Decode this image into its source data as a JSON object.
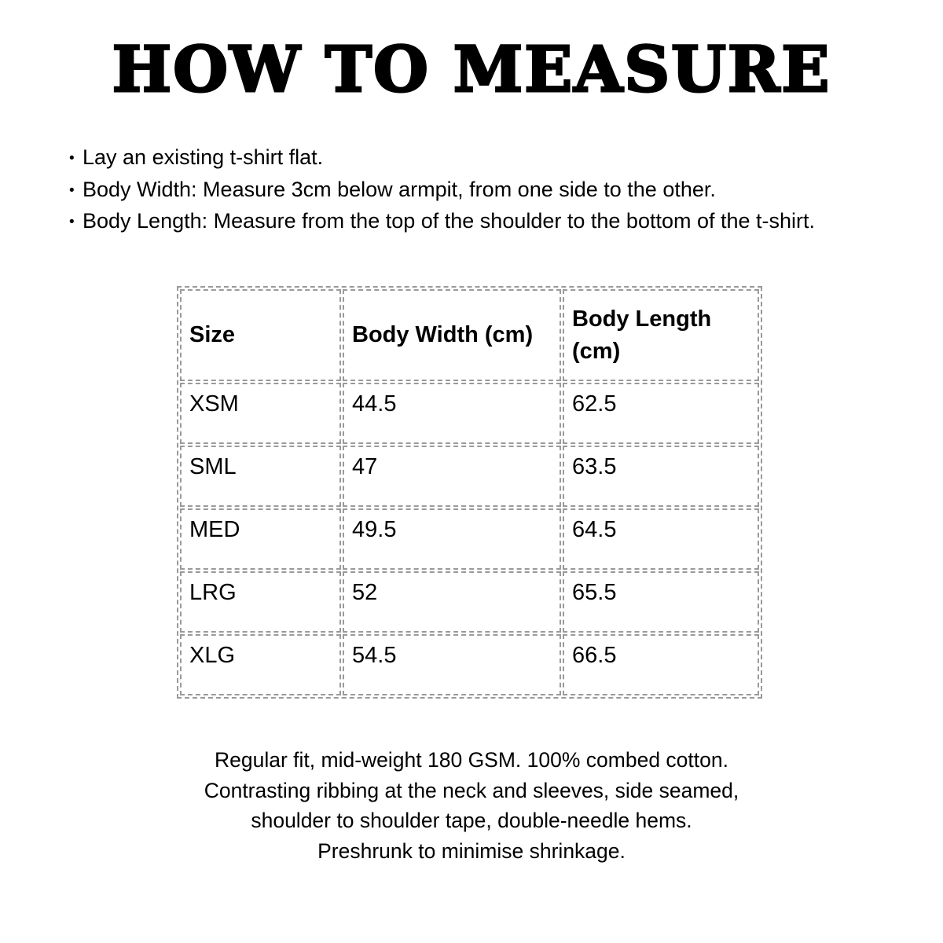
{
  "page": {
    "title": "HOW TO MEASURE",
    "bullet_char": "•"
  },
  "instructions": {
    "items": [
      "Lay an existing t-shirt flat.",
      "Body Width: Measure 3cm below armpit, from one side to the other.",
      "Body Length: Measure from the top of the shoulder to the bottom of the t-shirt."
    ]
  },
  "size_table": {
    "columns": [
      "Size",
      "Body Width (cm)",
      "Body Length (cm)"
    ],
    "rows": [
      {
        "size": "XSM",
        "body_width_cm": "44.5",
        "body_length_cm": "62.5"
      },
      {
        "size": "SML",
        "body_width_cm": "47",
        "body_length_cm": "63.5"
      },
      {
        "size": "MED",
        "body_width_cm": "49.5",
        "body_length_cm": "64.5"
      },
      {
        "size": "LRG",
        "body_width_cm": "52",
        "body_length_cm": "65.5"
      },
      {
        "size": "XLG",
        "body_width_cm": "54.5",
        "body_length_cm": "66.5"
      }
    ]
  },
  "fabric_details": {
    "lines": [
      "Regular fit, mid-weight 180 GSM. 100% combed cotton.",
      "Contrasting ribbing at the neck and sleeves, side seamed,",
      "shoulder to shoulder tape, double-needle hems.",
      "Preshrunk to minimise shrinkage."
    ]
  },
  "colors": {
    "text": "#000000",
    "table_border": "#9a9a9a",
    "background": "#ffffff"
  }
}
